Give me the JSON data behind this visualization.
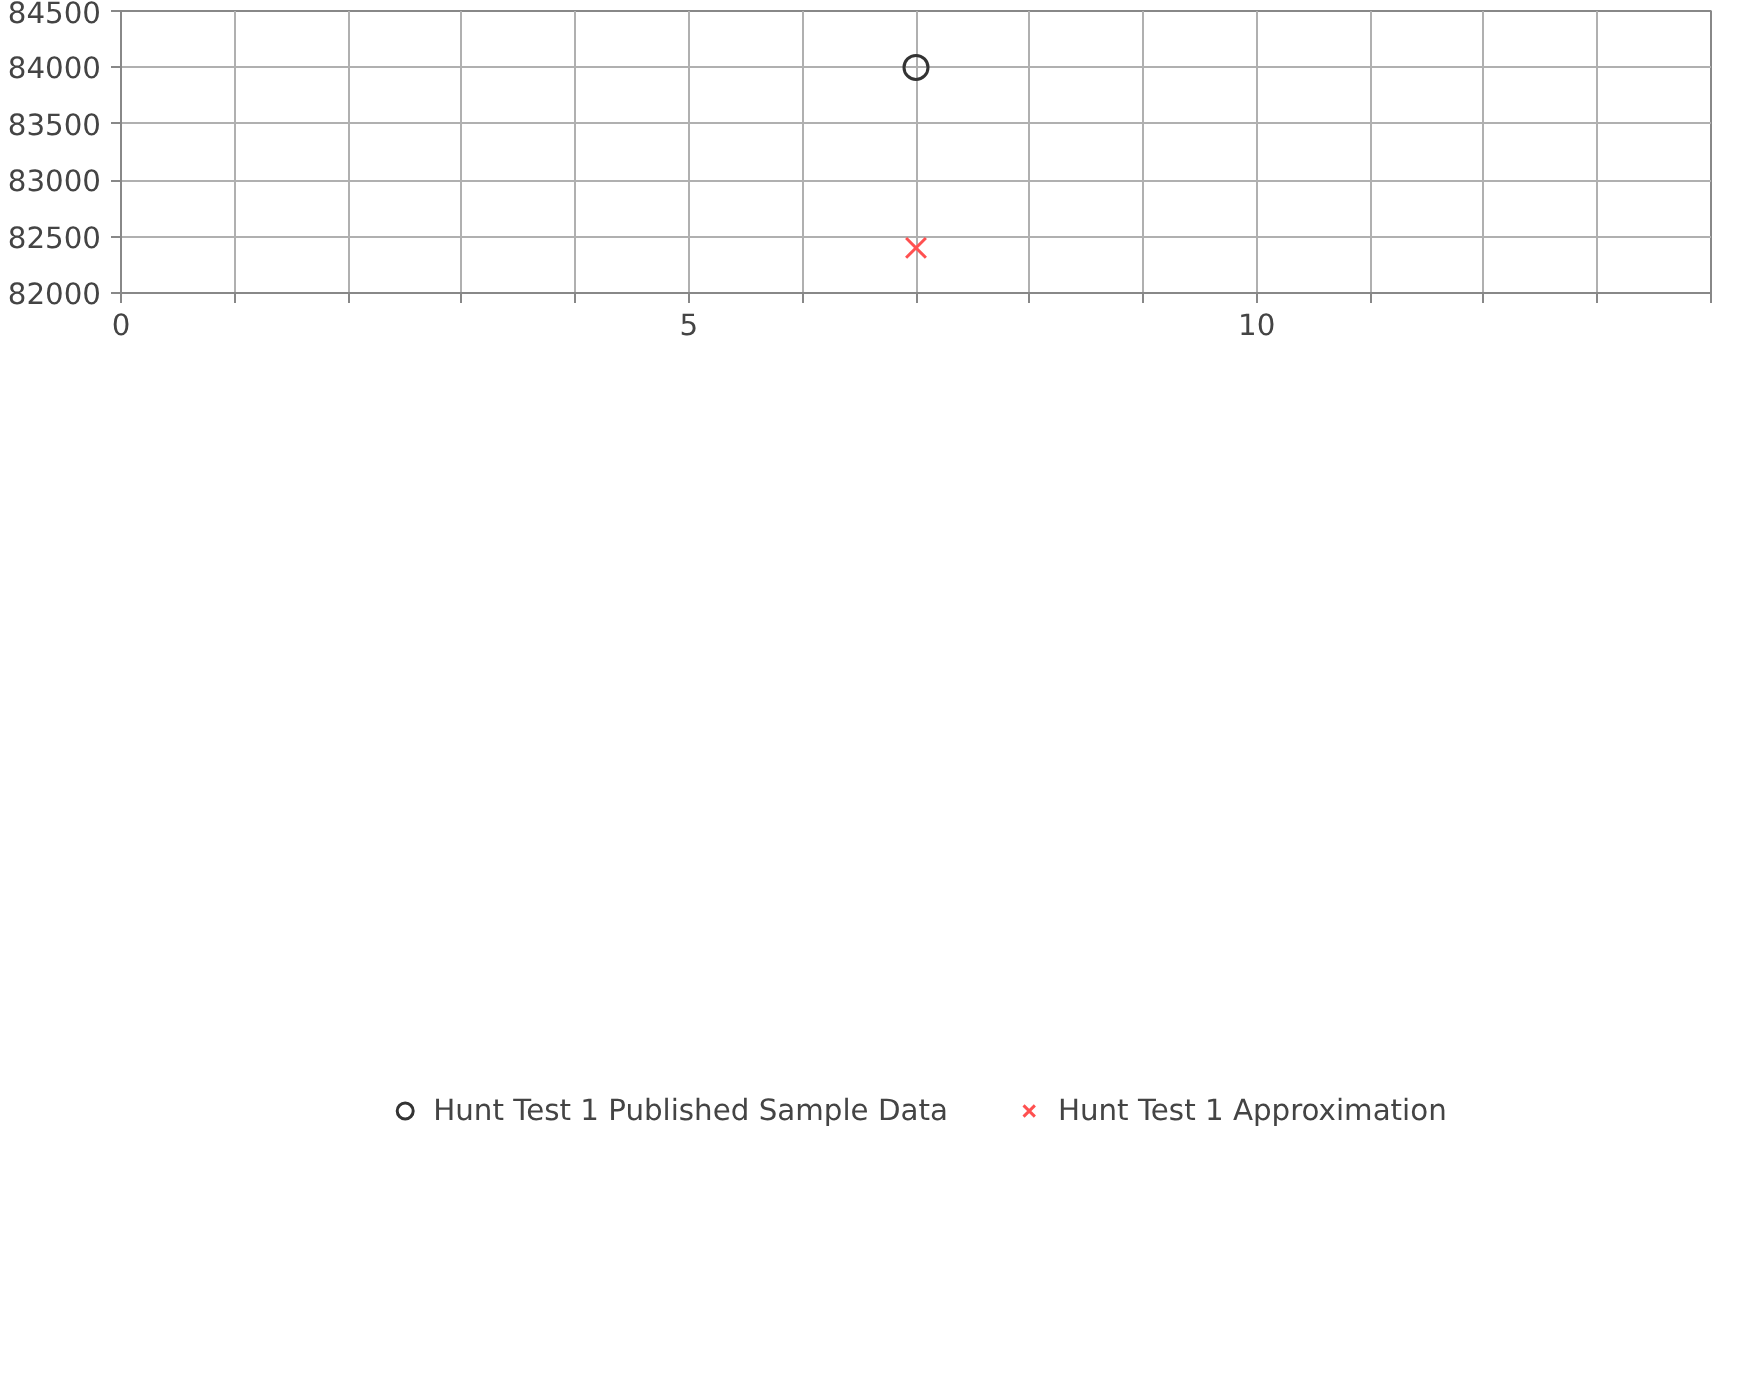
{
  "chart_data": {
    "type": "scatter",
    "xlim": [
      0,
      14
    ],
    "ylim": [
      82000,
      84500
    ],
    "xticks": [
      0,
      {
        "value": 1,
        "label": null
      },
      {
        "value": 2,
        "label": null
      },
      {
        "value": 3,
        "label": null
      },
      {
        "value": 4,
        "label": null
      },
      5,
      {
        "value": 6,
        "label": null
      },
      {
        "value": 7,
        "label": null
      },
      {
        "value": 8,
        "label": null
      },
      {
        "value": 9,
        "label": null
      },
      10,
      {
        "value": 11,
        "label": null
      },
      {
        "value": 12,
        "label": null
      },
      {
        "value": 13,
        "label": null
      },
      {
        "value": 14,
        "label": null
      }
    ],
    "yticks": [
      82000,
      82500,
      83000,
      83500,
      84000,
      84500
    ],
    "grid": true,
    "legend": "bottom",
    "series": [
      {
        "name": "Hunt Test 1 Published Sample Data",
        "color": "#333333",
        "marker": "circle",
        "x": [
          7
        ],
        "values": [
          84000
        ]
      },
      {
        "name": "Hunt Test 1 Approximation",
        "color": "#ff5050",
        "marker": "cross",
        "x": [
          7
        ],
        "values": [
          82400
        ]
      }
    ]
  }
}
